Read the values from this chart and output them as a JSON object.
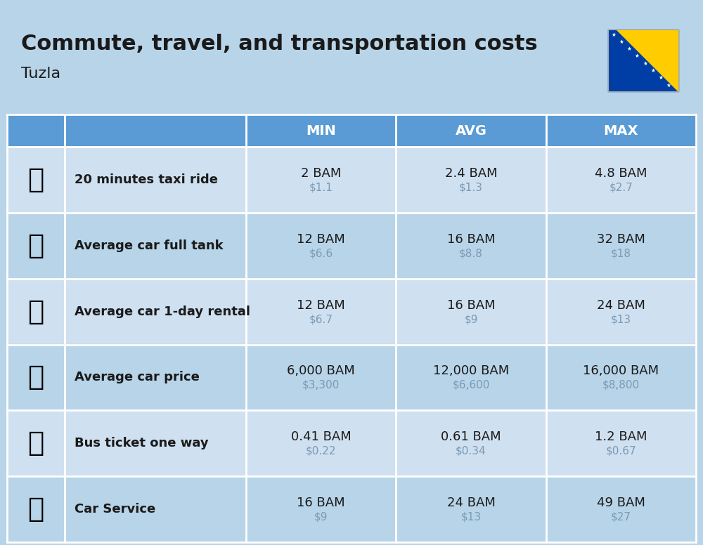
{
  "title": "Commute, travel, and transportation costs",
  "subtitle": "Tuzla",
  "bg_color": "#b8d4e8",
  "header_bg": "#5b9bd5",
  "header_text_color": "#ffffff",
  "row_bg_light": "#cfe0f0",
  "row_bg_dark": "#b8d4e8",
  "cell_border_color": "#ffffff",
  "col_headers": [
    "MIN",
    "AVG",
    "MAX"
  ],
  "rows": [
    {
      "label": "20 minutes taxi ride",
      "min_bam": "2 BAM",
      "min_usd": "$1.1",
      "avg_bam": "2.4 BAM",
      "avg_usd": "$1.3",
      "max_bam": "4.8 BAM",
      "max_usd": "$2.7"
    },
    {
      "label": "Average car full tank",
      "min_bam": "12 BAM",
      "min_usd": "$6.6",
      "avg_bam": "16 BAM",
      "avg_usd": "$8.8",
      "max_bam": "32 BAM",
      "max_usd": "$18"
    },
    {
      "label": "Average car 1-day rental",
      "min_bam": "12 BAM",
      "min_usd": "$6.7",
      "avg_bam": "16 BAM",
      "avg_usd": "$9",
      "max_bam": "24 BAM",
      "max_usd": "$13"
    },
    {
      "label": "Average car price",
      "min_bam": "6,000 BAM",
      "min_usd": "$3,300",
      "avg_bam": "12,000 BAM",
      "avg_usd": "$6,600",
      "max_bam": "16,000 BAM",
      "max_usd": "$8,800"
    },
    {
      "label": "Bus ticket one way",
      "min_bam": "0.41 BAM",
      "min_usd": "$0.22",
      "avg_bam": "0.61 BAM",
      "avg_usd": "$0.34",
      "max_bam": "1.2 BAM",
      "max_usd": "$0.67"
    },
    {
      "label": "Car Service",
      "min_bam": "16 BAM",
      "min_usd": "$9",
      "avg_bam": "24 BAM",
      "avg_usd": "$13",
      "max_bam": "49 BAM",
      "max_usd": "$27"
    }
  ],
  "title_fontsize": 22,
  "subtitle_fontsize": 16,
  "header_fontsize": 14,
  "label_fontsize": 13,
  "value_fontsize": 13,
  "usd_fontsize": 11,
  "icon_fontsize": 28,
  "flag_blue": "#003DA5",
  "flag_yellow": "#FFCC00",
  "text_dark": "#1a1a1a",
  "text_usd": "#7a9ab5"
}
